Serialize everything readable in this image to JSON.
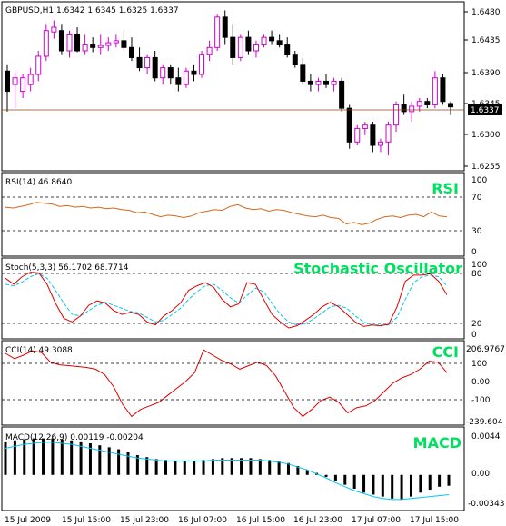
{
  "colors": {
    "bull": "#ffffff",
    "bull_border": "#d000d0",
    "bear": "#000000",
    "rsi_line": "#d2691e",
    "stoch_main": "#e00000",
    "stoch_signal": "#00c8f0",
    "cci_line": "#e00000",
    "macd_hist": "#000000",
    "macd_signal": "#00c8f0",
    "ind_title": "#00e060",
    "price_line": "#8b4513",
    "grid": "#000000"
  },
  "main": {
    "label": "GBPUSD,H1  1.6342 1.6345 1.6325 1.6337",
    "current_price": "1.6337",
    "y_ticks": [
      "1.6480",
      "1.6435",
      "1.6390",
      "1.6345",
      "1.6300",
      "1.6255"
    ]
  },
  "rsi": {
    "label": "RSI(14) 46.8640",
    "title": "RSI",
    "levels": [
      "100",
      "70",
      "30",
      "0"
    ]
  },
  "stoch": {
    "label": "Stoch(5,3,3) 56.1702 68.7714",
    "title": "Stochastic Oscillator",
    "levels": [
      "100",
      "80",
      "20",
      "0"
    ]
  },
  "cci": {
    "label": "CCI(14) 49.3088",
    "title": "CCI",
    "levels": [
      "206.9767",
      "100",
      "0.00",
      "-100",
      "-239.604"
    ]
  },
  "macd": {
    "label": "MACD(12,26,9) 0.00119 -0.00204",
    "title": "MACD",
    "levels": [
      "0.0044",
      "0.00",
      "-0.00343"
    ]
  },
  "x_axis": [
    "15 Jul 2009",
    "15 Jul 15:00",
    "15 Jul 23:00",
    "16 Jul 07:00",
    "16 Jul 15:00",
    "16 Jul 23:00",
    "17 Jul 07:00",
    "17 Jul 15:00"
  ],
  "chart_data": [
    {
      "type": "candlestick",
      "title": "GBPUSD,H1",
      "ylim": [
        1.6245,
        1.649
      ],
      "current": 1.6337,
      "ohlc": [
        [
          1.639,
          1.64,
          1.633,
          1.636
        ],
        [
          1.637,
          1.639,
          1.6335,
          1.638
        ],
        [
          1.636,
          1.6385,
          1.635,
          1.638
        ],
        [
          1.637,
          1.6395,
          1.636,
          1.6385
        ],
        [
          1.6385,
          1.642,
          1.6375,
          1.6412
        ],
        [
          1.6412,
          1.646,
          1.6405,
          1.645
        ],
        [
          1.6448,
          1.6465,
          1.6438,
          1.6455
        ],
        [
          1.645,
          1.646,
          1.6415,
          1.642
        ],
        [
          1.642,
          1.645,
          1.641,
          1.6445
        ],
        [
          1.6445,
          1.6455,
          1.6418,
          1.642
        ],
        [
          1.642,
          1.6445,
          1.6415,
          1.643
        ],
        [
          1.643,
          1.644,
          1.6418,
          1.6425
        ],
        [
          1.6425,
          1.6445,
          1.6415,
          1.6428
        ],
        [
          1.6428,
          1.644,
          1.642,
          1.6432
        ],
        [
          1.6432,
          1.6445,
          1.6425,
          1.6435
        ],
        [
          1.6435,
          1.645,
          1.642,
          1.6425
        ],
        [
          1.6425,
          1.644,
          1.6405,
          1.641
        ],
        [
          1.641,
          1.6425,
          1.639,
          1.6395
        ],
        [
          1.6395,
          1.6415,
          1.6385,
          1.641
        ],
        [
          1.641,
          1.642,
          1.6375,
          1.638
        ],
        [
          1.638,
          1.64,
          1.637,
          1.6395
        ],
        [
          1.6395,
          1.64,
          1.637,
          1.638
        ],
        [
          1.638,
          1.6395,
          1.636,
          1.637
        ],
        [
          1.637,
          1.6395,
          1.6365,
          1.639
        ],
        [
          1.639,
          1.64,
          1.6375,
          1.6385
        ],
        [
          1.6385,
          1.642,
          1.638,
          1.6415
        ],
        [
          1.6415,
          1.6435,
          1.6405,
          1.6425
        ],
        [
          1.6425,
          1.6475,
          1.642,
          1.647
        ],
        [
          1.647,
          1.648,
          1.643,
          1.644
        ],
        [
          1.644,
          1.646,
          1.64,
          1.641
        ],
        [
          1.641,
          1.6445,
          1.6405,
          1.644
        ],
        [
          1.644,
          1.645,
          1.6415,
          1.642
        ],
        [
          1.642,
          1.6435,
          1.641,
          1.643
        ],
        [
          1.643,
          1.6445,
          1.6425,
          1.644
        ],
        [
          1.644,
          1.645,
          1.643,
          1.6435
        ],
        [
          1.6435,
          1.6445,
          1.6425,
          1.643
        ],
        [
          1.643,
          1.644,
          1.641,
          1.6415
        ],
        [
          1.6415,
          1.642,
          1.6395,
          1.64
        ],
        [
          1.64,
          1.641,
          1.637,
          1.6375
        ],
        [
          1.6375,
          1.6385,
          1.636,
          1.637
        ],
        [
          1.637,
          1.638,
          1.636,
          1.6375
        ],
        [
          1.6375,
          1.6385,
          1.6365,
          1.637
        ],
        [
          1.637,
          1.638,
          1.636,
          1.6375
        ],
        [
          1.6375,
          1.638,
          1.633,
          1.6335
        ],
        [
          1.6335,
          1.634,
          1.6275,
          1.6285
        ],
        [
          1.6285,
          1.631,
          1.628,
          1.6305
        ],
        [
          1.6305,
          1.6315,
          1.6295,
          1.631
        ],
        [
          1.631,
          1.6315,
          1.627,
          1.628
        ],
        [
          1.628,
          1.629,
          1.627,
          1.6285
        ],
        [
          1.6285,
          1.6315,
          1.6265,
          1.631
        ],
        [
          1.631,
          1.6345,
          1.63,
          1.634
        ],
        [
          1.634,
          1.6355,
          1.6325,
          1.633
        ],
        [
          1.633,
          1.6345,
          1.6315,
          1.6338
        ],
        [
          1.6338,
          1.635,
          1.633,
          1.6345
        ],
        [
          1.6345,
          1.635,
          1.6335,
          1.634
        ],
        [
          1.634,
          1.639,
          1.6335,
          1.638
        ],
        [
          1.638,
          1.6385,
          1.634,
          1.6345
        ],
        [
          1.6342,
          1.6345,
          1.6325,
          1.6337
        ]
      ]
    },
    {
      "type": "line",
      "title": "RSI(14)",
      "ylim": [
        0,
        100
      ],
      "levels": [
        70,
        30
      ],
      "series": [
        {
          "values": [
            59,
            58,
            60,
            62,
            65,
            64,
            63,
            60,
            61,
            59,
            60,
            58,
            59,
            57,
            58,
            56,
            55,
            52,
            53,
            50,
            47,
            49,
            48,
            46,
            48,
            52,
            54,
            56,
            55,
            60,
            62,
            58,
            56,
            57,
            54,
            56,
            55,
            52,
            50,
            48,
            47,
            49,
            46,
            45,
            38,
            40,
            37,
            39,
            44,
            47,
            48,
            46,
            49,
            50,
            47,
            53,
            48,
            47
          ]
        }
      ]
    },
    {
      "type": "line",
      "title": "Stoch(5,3,3)",
      "ylim": [
        0,
        100
      ],
      "levels": [
        80,
        20
      ],
      "series": [
        {
          "values": [
            78,
            70,
            80,
            86,
            85,
            70,
            45,
            25,
            20,
            28,
            42,
            48,
            45,
            35,
            30,
            33,
            30,
            20,
            16,
            28,
            35,
            45,
            62,
            68,
            72,
            66,
            50,
            40,
            44,
            72,
            70,
            50,
            30,
            20,
            12,
            15,
            22,
            30,
            40,
            46,
            40,
            30,
            20,
            14,
            16,
            15,
            17,
            40,
            74,
            82,
            82,
            84,
            74,
            56
          ]
        },
        {
          "values": [
            70,
            68,
            73,
            80,
            84,
            78,
            62,
            45,
            30,
            28,
            35,
            42,
            46,
            42,
            38,
            34,
            32,
            26,
            20,
            22,
            30,
            38,
            50,
            60,
            68,
            70,
            62,
            52,
            45,
            55,
            65,
            60,
            45,
            30,
            20,
            16,
            18,
            24,
            32,
            40,
            42,
            38,
            28,
            20,
            16,
            16,
            16,
            26,
            50,
            72,
            80,
            82,
            80,
            68
          ]
        }
      ]
    },
    {
      "type": "line",
      "title": "CCI(14)",
      "ylim": [
        -239.604,
        206.9767
      ],
      "levels": [
        100,
        -100
      ],
      "series": [
        {
          "values": [
            160,
            130,
            150,
            175,
            165,
            110,
            95,
            90,
            85,
            80,
            70,
            40,
            -30,
            -130,
            -200,
            -160,
            -140,
            -120,
            -80,
            -40,
            0,
            50,
            180,
            150,
            120,
            100,
            70,
            90,
            110,
            90,
            30,
            -60,
            -150,
            -200,
            -160,
            -110,
            -90,
            -120,
            -180,
            -150,
            -140,
            -110,
            -60,
            -10,
            20,
            40,
            70,
            115,
            110,
            50
          ]
        }
      ]
    },
    {
      "type": "bar",
      "title": "MACD(12,26,9)",
      "ylim": [
        -0.00343,
        0.0044
      ],
      "values": [
        0.0034,
        0.0035,
        0.0036,
        0.0037,
        0.0037,
        0.0037,
        0.0036,
        0.0035,
        0.0034,
        0.0032,
        0.003,
        0.0028,
        0.0026,
        0.0023,
        0.002,
        0.0018,
        0.0016,
        0.0015,
        0.0014,
        0.0014,
        0.0014,
        0.0015,
        0.0016,
        0.0017,
        0.0017,
        0.0017,
        0.0017,
        0.0016,
        0.0015,
        0.0014,
        0.0012,
        0.0009,
        0.0005,
        0.0002,
        -0.0002,
        -0.0006,
        -0.001,
        -0.0014,
        -0.0018,
        -0.002,
        -0.0022,
        -0.0024,
        -0.0025,
        -0.0022,
        -0.0018,
        -0.0015,
        -0.0012,
        -0.0011
      ],
      "series": [
        {
          "values": [
            0.0027,
            0.0029,
            0.0031,
            0.0032,
            0.0033,
            0.0033,
            0.0032,
            0.0031,
            0.0029,
            0.0027,
            0.0025,
            0.0023,
            0.0021,
            0.0019,
            0.0017,
            0.0016,
            0.0015,
            0.0014,
            0.0014,
            0.0014,
            0.0014,
            0.0014,
            0.0015,
            0.0015,
            0.0015,
            0.0015,
            0.0015,
            0.0015,
            0.0014,
            0.0013,
            0.0011,
            0.0008,
            0.0005,
            0.0001,
            -0.0003,
            -0.0008,
            -0.0012,
            -0.0016,
            -0.0019,
            -0.0022,
            -0.0024,
            -0.0025,
            -0.0025,
            -0.0024,
            -0.0023,
            -0.0022,
            -0.0021,
            -0.002
          ]
        }
      ]
    }
  ]
}
